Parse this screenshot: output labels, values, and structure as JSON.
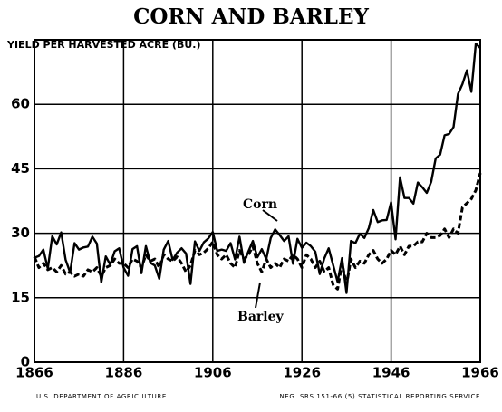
{
  "chart_data": {
    "type": "line",
    "title": "CORN AND BARLEY",
    "y_label": "YIELD PER HARVESTED ACRE (BU.)",
    "footer_left": "U.S. DEPARTMENT OF AGRICULTURE",
    "footer_right": "NEG. SRS 151-66 (5)  STATISTICAL REPORTING SERVICE",
    "annotations": [
      "Corn",
      "Barley"
    ],
    "x": [
      1866,
      1867,
      1868,
      1869,
      1870,
      1871,
      1872,
      1873,
      1874,
      1875,
      1876,
      1877,
      1878,
      1879,
      1880,
      1881,
      1882,
      1883,
      1884,
      1885,
      1886,
      1887,
      1888,
      1889,
      1890,
      1891,
      1892,
      1893,
      1894,
      1895,
      1896,
      1897,
      1898,
      1899,
      1900,
      1901,
      1902,
      1903,
      1904,
      1905,
      1906,
      1907,
      1908,
      1909,
      1910,
      1911,
      1912,
      1913,
      1914,
      1915,
      1916,
      1917,
      1918,
      1919,
      1920,
      1921,
      1922,
      1923,
      1924,
      1925,
      1926,
      1927,
      1928,
      1929,
      1930,
      1931,
      1932,
      1933,
      1934,
      1935,
      1936,
      1937,
      1938,
      1939,
      1940,
      1941,
      1942,
      1943,
      1944,
      1945,
      1946,
      1947,
      1948,
      1949,
      1950,
      1951,
      1952,
      1953,
      1954,
      1955,
      1956,
      1957,
      1958,
      1959,
      1960,
      1961,
      1962,
      1963,
      1964,
      1965,
      1966
    ],
    "series": [
      {
        "name": "Corn",
        "color": "#000000",
        "line_style": "solid",
        "values": [
          24.3,
          24.7,
          26.2,
          21.8,
          29.3,
          27.4,
          30.2,
          23.8,
          20.9,
          27.7,
          26.2,
          26.7,
          26.9,
          29.2,
          27.6,
          18.6,
          24.6,
          22.7,
          25.8,
          26.5,
          22.0,
          20.1,
          26.3,
          27.0,
          20.7,
          27.0,
          23.1,
          22.5,
          19.4,
          26.2,
          28.2,
          23.8,
          25.5,
          26.5,
          25.3,
          18.2,
          28.1,
          25.9,
          27.9,
          28.8,
          30.3,
          25.9,
          26.2,
          25.9,
          27.7,
          23.9,
          29.2,
          23.1,
          25.8,
          28.2,
          24.4,
          26.3,
          24.0,
          28.9,
          30.9,
          29.6,
          28.2,
          29.3,
          22.9,
          28.7,
          26.6,
          27.8,
          27.0,
          25.7,
          20.5,
          24.1,
          26.5,
          22.6,
          18.7,
          24.2,
          16.1,
          28.2,
          27.7,
          29.9,
          28.9,
          31.2,
          35.4,
          32.6,
          33.0,
          33.1,
          37.2,
          28.6,
          43.0,
          38.2,
          38.2,
          36.9,
          41.8,
          40.7,
          39.4,
          42.0,
          47.4,
          48.3,
          52.8,
          53.1,
          54.7,
          62.4,
          64.7,
          67.9,
          62.9,
          74.1,
          73.1
        ]
      },
      {
        "name": "Barley",
        "color": "#000000",
        "line_style": "dashed",
        "values": [
          24.5,
          22,
          23,
          21.5,
          22,
          21,
          22.5,
          20.5,
          21,
          20,
          20.5,
          20,
          21.5,
          21,
          22,
          20,
          22,
          22.5,
          24,
          23,
          23,
          22,
          24,
          23.5,
          22,
          25,
          23.5,
          24,
          22,
          25,
          24,
          23.5,
          24.5,
          23,
          21,
          22.5,
          26,
          25,
          25.5,
          26.5,
          28,
          25,
          24,
          25,
          23,
          22,
          26,
          24,
          25,
          27,
          23,
          21,
          24,
          22,
          23,
          22,
          24,
          23.5,
          25,
          24,
          22,
          25,
          24,
          22,
          23.5,
          21,
          22,
          18,
          17,
          23,
          18,
          24,
          22,
          23.5,
          23,
          25,
          26,
          24,
          23,
          24,
          26,
          25,
          27,
          25,
          27,
          27,
          28,
          28,
          30,
          29,
          29,
          29.5,
          31,
          29,
          31,
          30,
          36,
          37,
          38,
          40,
          44
        ]
      }
    ],
    "xlim": [
      1866,
      1966
    ],
    "xticks": [
      1866,
      1886,
      1906,
      1926,
      1946,
      1966
    ],
    "ylim": [
      0,
      75
    ],
    "yticks": [
      0,
      15,
      30,
      45,
      60
    ],
    "grid": true
  }
}
